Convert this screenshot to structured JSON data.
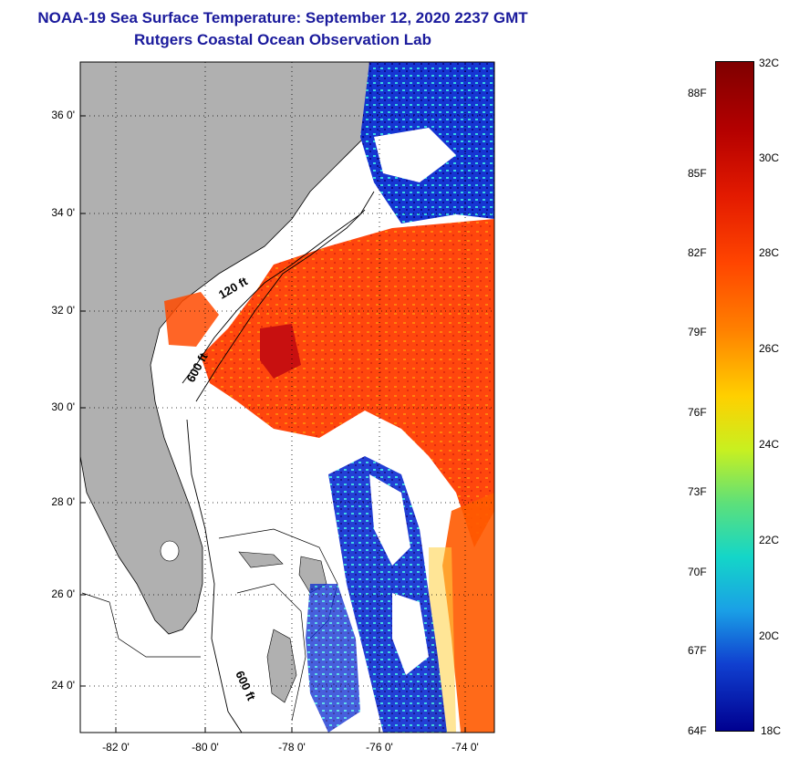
{
  "title_line1": "NOAA-19 Sea Surface Temperature:  September 12, 2020 2237 GMT",
  "title_line2": "Rutgers Coastal Ocean Observation Lab",
  "lat_ticks": [
    "36 0'",
    "34 0'",
    "32 0'",
    "30 0'",
    "28 0'",
    "26 0'",
    "24 0'"
  ],
  "lon_ticks": [
    "-82 0'",
    "-80 0'",
    "-78 0'",
    "-76 0'",
    "-74 0'"
  ],
  "contour_labels": [
    "120 ft",
    "600 ft",
    "600 ft"
  ],
  "colorbar": {
    "fahrenheit": [
      "88F",
      "85F",
      "82F",
      "79F",
      "76F",
      "73F",
      "70F",
      "67F",
      "64F"
    ],
    "celsius": [
      "32C",
      "30C",
      "28C",
      "26C",
      "24C",
      "22C",
      "20C",
      "18C"
    ]
  },
  "colors": {
    "land": "#b0b0b0",
    "title": "#1a1a9c",
    "warm": "#ff4000",
    "cool": "#0010c0"
  }
}
